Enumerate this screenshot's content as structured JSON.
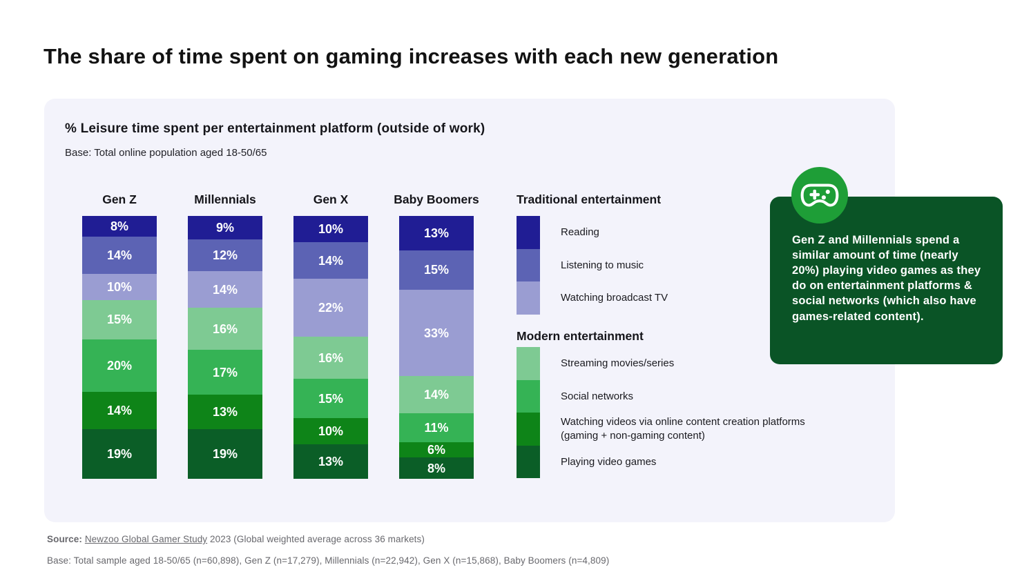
{
  "page_title": "The share of time spent on gaming increases with each new generation",
  "panel": {
    "title": "% Leisure time spent per entertainment platform (outside of work)",
    "subtitle": "Base: Total online population aged 18-50/65"
  },
  "chart_data": {
    "type": "bar",
    "stacked": true,
    "unit": "%",
    "title": "% Leisure time spent per entertainment platform (outside of work)",
    "categories": [
      "Gen Z",
      "Millennials",
      "Gen X",
      "Baby Boomers"
    ],
    "series": [
      {
        "name": "Reading",
        "group": "Traditional entertainment",
        "color": "#201d94",
        "values": [
          8,
          9,
          10,
          13
        ]
      },
      {
        "name": "Listening to music",
        "group": "Traditional entertainment",
        "color": "#5c63b4",
        "values": [
          14,
          12,
          14,
          15
        ]
      },
      {
        "name": "Watching broadcast TV",
        "group": "Traditional entertainment",
        "color": "#9a9dd2",
        "values": [
          10,
          14,
          22,
          33
        ]
      },
      {
        "name": "Streaming movies/series",
        "group": "Modern entertainment",
        "color": "#7eca93",
        "values": [
          15,
          16,
          16,
          14
        ]
      },
      {
        "name": "Social networks",
        "group": "Modern entertainment",
        "color": "#35b355",
        "values": [
          20,
          17,
          15,
          11
        ]
      },
      {
        "name": "Watching videos via online content creation platforms (gaming + non-gaming content)",
        "group": "Modern entertainment",
        "color": "#0e8418",
        "values": [
          14,
          13,
          10,
          6
        ]
      },
      {
        "name": "Playing video games",
        "group": "Modern entertainment",
        "color": "#0b5e27",
        "values": [
          19,
          19,
          13,
          8
        ]
      }
    ],
    "ylim": [
      0,
      100
    ],
    "grid": false,
    "legend_position": "right",
    "value_labels": "inside"
  },
  "legend": {
    "groups": [
      {
        "heading": "Traditional entertainment",
        "items": [
          {
            "label": "Reading",
            "color": "#201d94"
          },
          {
            "label": "Listening to music",
            "color": "#5c63b4"
          },
          {
            "label": "Watching broadcast TV",
            "color": "#9a9dd2"
          }
        ]
      },
      {
        "heading": "Modern entertainment",
        "items": [
          {
            "label": "Streaming movies/series",
            "color": "#7eca93"
          },
          {
            "label": "Social networks",
            "color": "#35b355"
          },
          {
            "label": "Watching videos via online content creation platforms (gaming + non-gaming content)",
            "color": "#0e8418"
          },
          {
            "label": "Playing video games",
            "color": "#0b5e27"
          }
        ]
      }
    ]
  },
  "callout": {
    "icon": "gamepad-icon",
    "icon_circle_color": "#1e9e37",
    "bg_color": "#0a5426",
    "text": "Gen Z and Millennials spend a similar amount of time (nearly 20%) playing video games as they do on entertainment platforms & social networks (which also have games-related content)."
  },
  "footer": {
    "source_label": "Source:",
    "source_link": "Newzoo Global Gamer Study",
    "source_suffix": " 2023 (Global weighted average across 36 markets)",
    "base": "Base: Total sample aged 18-50/65 (n=60,898), Gen Z (n=17,279), Millennials (n=22,942), Gen X (n=15,868), Baby Boomers (n=4,809)"
  },
  "colors": {
    "panel_bg": "#f3f3fb",
    "page_bg": "#ffffff",
    "title_text": "#121212",
    "footer_text": "#68686d"
  }
}
